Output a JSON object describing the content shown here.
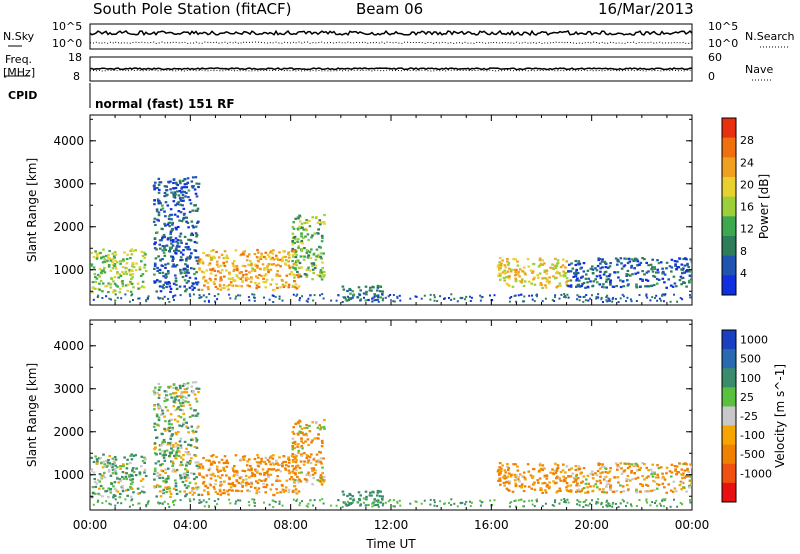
{
  "header": {
    "station": "South Pole Station (fitACF)",
    "beam": "Beam 06",
    "date": "16/Mar/2013"
  },
  "noise_panel": {
    "left_label": "N.Sky",
    "right_label": "N.Search",
    "tick_hi": "10^5",
    "tick_lo": "10^0"
  },
  "freq_panel": {
    "left_label": "Freq.",
    "left_unit": "[MHz]",
    "right_label": "Nave",
    "left_ticks": [
      "18",
      "8"
    ],
    "right_ticks": [
      "60",
      "0"
    ]
  },
  "cpid": {
    "label": "CPID",
    "text": "normal (fast) 151 RF"
  },
  "time_axis": {
    "label": "Time UT",
    "ticks": [
      "00:00",
      "04:00",
      "08:00",
      "12:00",
      "16:00",
      "20:00",
      "00:00"
    ]
  },
  "colors": {
    "power": [
      "#1030e0",
      "#1f55b0",
      "#2e7d5a",
      "#3ea850",
      "#9bd03a",
      "#e8d030",
      "#f0a020",
      "#f07010",
      "#e83010"
    ],
    "velocity": [
      "#1840c0",
      "#2a6ab0",
      "#3a8c6a",
      "#5ac040",
      "#c8c8c8",
      "#f5a400",
      "#f08000",
      "#f05010",
      "#e81010"
    ]
  },
  "chart_data": [
    {
      "type": "heatmap",
      "title": "Power",
      "ylabel": "Slant Range [km]",
      "xlabel": "",
      "x_range": [
        "00:00",
        "24:00"
      ],
      "ylim": [
        180,
        4600
      ],
      "y_ticks": [
        1000,
        2000,
        3000,
        4000
      ],
      "colorbar": {
        "label": "Power [dB]",
        "ticks": [
          4,
          8,
          12,
          16,
          20,
          24,
          28
        ],
        "range": [
          0,
          32
        ]
      },
      "echo_regions": [
        {
          "t": [
            0.0,
            2.2
          ],
          "range_km": [
            500,
            1500
          ],
          "power_db": 16
        },
        {
          "t": [
            2.5,
            4.3
          ],
          "range_km": [
            500,
            3200
          ],
          "power_db": 6
        },
        {
          "t": [
            4.3,
            8.3
          ],
          "range_km": [
            550,
            1500
          ],
          "power_db": 22
        },
        {
          "t": [
            8.0,
            9.3
          ],
          "range_km": [
            800,
            2300
          ],
          "power_db": 14
        },
        {
          "t": [
            10.0,
            11.7
          ],
          "range_km": [
            300,
            650
          ],
          "power_db": 8
        },
        {
          "t": [
            16.2,
            19.0
          ],
          "range_km": [
            600,
            1300
          ],
          "power_db": 20
        },
        {
          "t": [
            19.0,
            24.0
          ],
          "range_km": [
            600,
            1300
          ],
          "power_db": 6
        }
      ]
    },
    {
      "type": "heatmap",
      "title": "Velocity",
      "ylabel": "Slant Range [km]",
      "xlabel": "Time UT",
      "x_range": [
        "00:00",
        "24:00"
      ],
      "ylim": [
        180,
        4600
      ],
      "y_ticks": [
        1000,
        2000,
        3000,
        4000
      ],
      "colorbar": {
        "label": "Velocity [m s^-1]",
        "ticks": [
          1000,
          500,
          100,
          25,
          -25,
          -100,
          -500,
          -1000
        ]
      },
      "echo_regions": [
        {
          "t": [
            0.0,
            2.2
          ],
          "range_km": [
            500,
            1500
          ],
          "velocity_ms": 100
        },
        {
          "t": [
            2.5,
            4.3
          ],
          "range_km": [
            500,
            3200
          ],
          "velocity_ms": 60
        },
        {
          "t": [
            4.3,
            8.3
          ],
          "range_km": [
            550,
            1500
          ],
          "velocity_ms": -150
        },
        {
          "t": [
            8.0,
            9.3
          ],
          "range_km": [
            800,
            2300
          ],
          "velocity_ms": -100
        },
        {
          "t": [
            10.0,
            11.7
          ],
          "range_km": [
            300,
            650
          ],
          "velocity_ms": 200
        },
        {
          "t": [
            16.2,
            19.0
          ],
          "range_km": [
            600,
            1300
          ],
          "velocity_ms": -150
        },
        {
          "t": [
            19.0,
            24.0
          ],
          "range_km": [
            600,
            1300
          ],
          "velocity_ms": -100
        }
      ]
    }
  ]
}
